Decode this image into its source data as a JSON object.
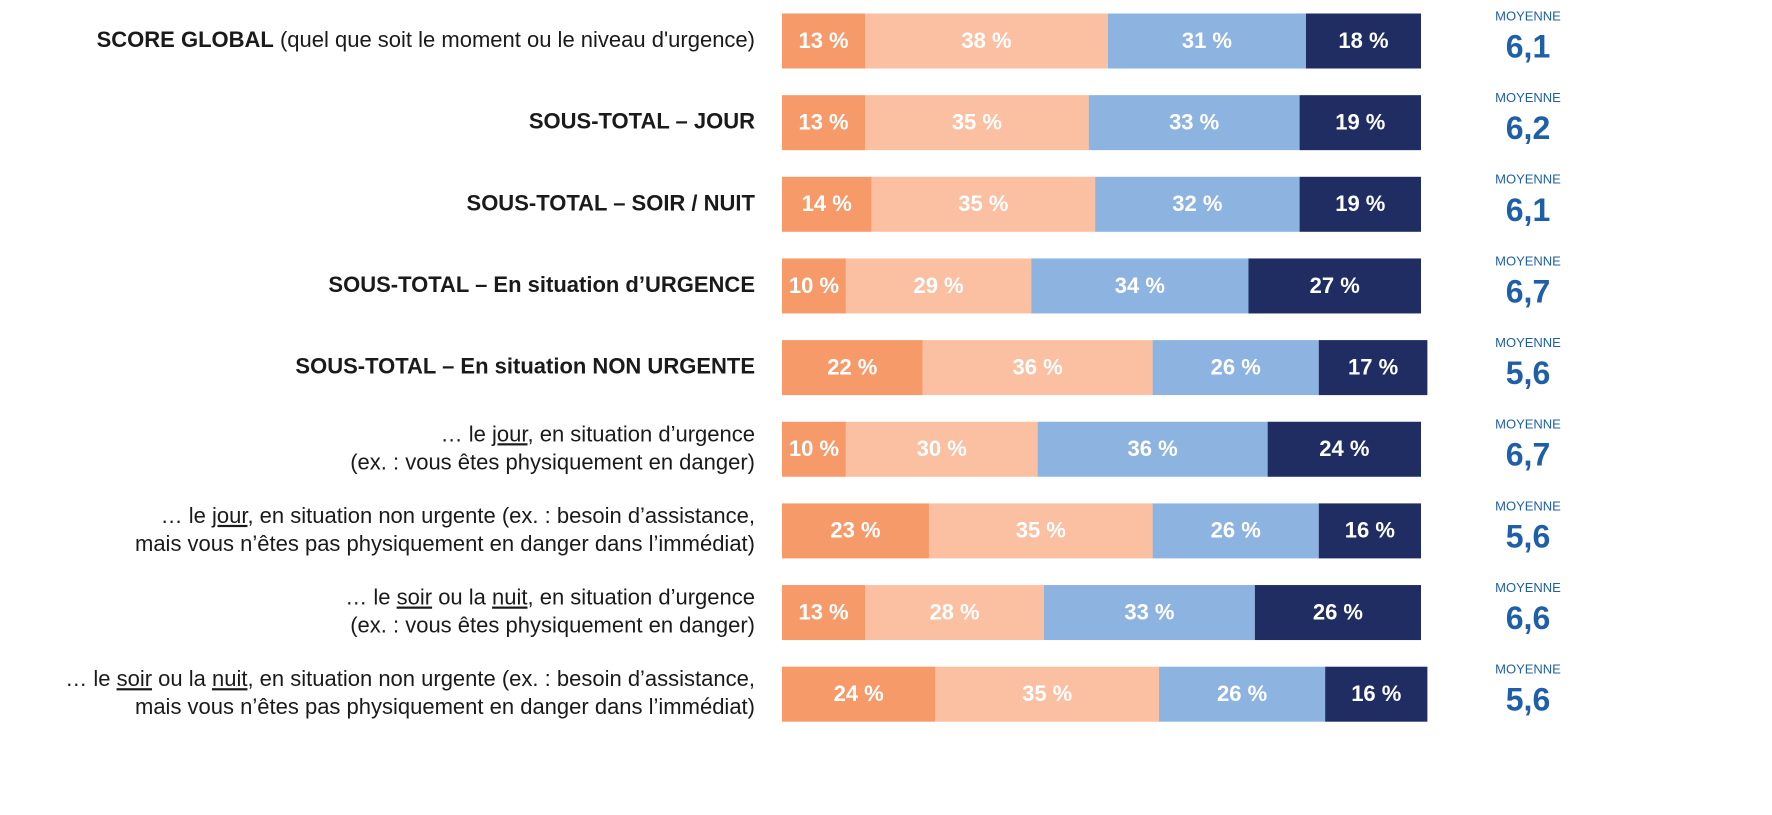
{
  "chart_data": {
    "type": "stacked-bar-horizontal",
    "categories": [
      [
        [
          {
            "text": "SCORE GLOBAL",
            "bold": true
          },
          {
            "text": " (quel que soit le moment ou le niveau d'urgence)"
          }
        ]
      ],
      [
        [
          {
            "text": "SOUS-TOTAL – JOUR",
            "bold": true
          }
        ]
      ],
      [
        [
          {
            "text": "SOUS-TOTAL – SOIR / NUIT",
            "bold": true
          }
        ]
      ],
      [
        [
          {
            "text": "SOUS-TOTAL – En situation d’URGENCE",
            "bold": true
          }
        ]
      ],
      [
        [
          {
            "text": "SOUS-TOTAL – En situation NON URGENTE",
            "bold": true
          }
        ]
      ],
      [
        [
          {
            "text": "… le "
          },
          {
            "text": "jour",
            "underline": true
          },
          {
            "text": ", en situation d’urgence"
          }
        ],
        [
          {
            "text": "(ex. : vous êtes physiquement en danger)"
          }
        ]
      ],
      [
        [
          {
            "text": "… le "
          },
          {
            "text": "jour",
            "underline": true
          },
          {
            "text": ", en situation non urgente (ex. : besoin d’assistance,"
          }
        ],
        [
          {
            "text": "mais vous n’êtes pas physiquement en danger dans l’immédiat)"
          }
        ]
      ],
      [
        [
          {
            "text": "… le "
          },
          {
            "text": "soir",
            "underline": true
          },
          {
            "text": " ou la "
          },
          {
            "text": "nuit",
            "underline": true
          },
          {
            "text": ", en situation d’urgence"
          }
        ],
        [
          {
            "text": "(ex. : vous êtes physiquement en danger)"
          }
        ]
      ],
      [
        [
          {
            "text": "… le "
          },
          {
            "text": "soir",
            "underline": true
          },
          {
            "text": " ou la "
          },
          {
            "text": "nuit",
            "underline": true
          },
          {
            "text": ", en situation non urgente (ex. : besoin d’assistance,"
          }
        ],
        [
          {
            "text": "mais vous n’êtes pas physiquement en danger dans l’immédiat)"
          }
        ]
      ]
    ],
    "series": [
      {
        "color": "#f79a6a",
        "values": [
          13,
          13,
          14,
          10,
          22,
          10,
          23,
          13,
          24
        ],
        "value_labels": [
          "13 %",
          "13 %",
          "14 %",
          "10 %",
          "22 %",
          "10 %",
          "23 %",
          "13 %",
          "24 %"
        ]
      },
      {
        "color": "#fbbfa1",
        "values": [
          38,
          35,
          35,
          29,
          36,
          30,
          35,
          28,
          35
        ],
        "value_labels": [
          "38 %",
          "35 %",
          "35 %",
          "29 %",
          "36 %",
          "30 %",
          "35 %",
          "28 %",
          "35 %"
        ]
      },
      {
        "color": "#8db3e0",
        "values": [
          31,
          33,
          32,
          34,
          26,
          36,
          26,
          33,
          26
        ],
        "value_labels": [
          "31 %",
          "33 %",
          "32 %",
          "34 %",
          "26 %",
          "36 %",
          "26 %",
          "33 %",
          "26 %"
        ]
      },
      {
        "color": "#1f2d63",
        "values": [
          18,
          19,
          19,
          27,
          17,
          24,
          16,
          26,
          16
        ],
        "value_labels": [
          "18 %",
          "19 %",
          "19 %",
          "27 %",
          "17 %",
          "24 %",
          "16 %",
          "26 %",
          "16 %"
        ]
      }
    ],
    "xlim": [
      0,
      100
    ],
    "means": {
      "label": "MOYENNE",
      "color": "#1f5fa8",
      "values": [
        6.1,
        6.2,
        6.1,
        6.7,
        5.6,
        6.7,
        5.6,
        6.6,
        5.6
      ],
      "value_labels": [
        "6,1",
        "6,2",
        "6,1",
        "6,7",
        "5,6",
        "6,7",
        "5,6",
        "6,6",
        "5,6"
      ]
    }
  }
}
